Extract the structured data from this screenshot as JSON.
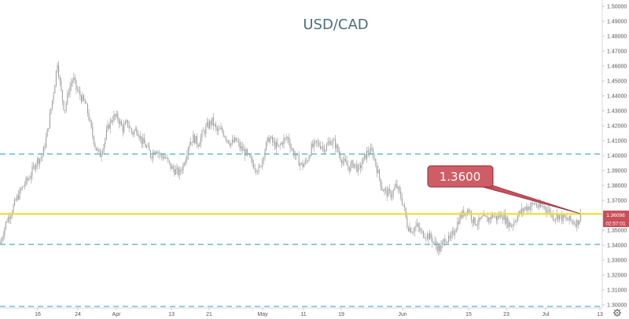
{
  "chart_data": {
    "type": "candlestick",
    "title": "USD/CAD",
    "xlabel": "",
    "ylabel": "",
    "ylim": [
      1.2925,
      1.5025
    ],
    "grid": false,
    "x_tick_labels": [
      "16",
      "24",
      "Apr",
      "13",
      "21",
      "May",
      "11",
      "19",
      "Jun",
      "15",
      "23",
      "Jul",
      "13"
    ],
    "y_tick_labels": [
      "1.30000",
      "1.31000",
      "1.32000",
      "1.33000",
      "1.34000",
      "1.35000",
      "1.36000",
      "1.37000",
      "1.38000",
      "1.39000",
      "1.40000",
      "1.41000",
      "1.42000",
      "1.43000",
      "1.44000",
      "1.45000",
      "1.46000",
      "1.47000",
      "1.48000",
      "1.49000",
      "1.50000"
    ],
    "price_path": [
      [
        0,
        1.341
      ],
      [
        8,
        1.356
      ],
      [
        14,
        1.362
      ],
      [
        22,
        1.372
      ],
      [
        30,
        1.38
      ],
      [
        38,
        1.386
      ],
      [
        46,
        1.396
      ],
      [
        54,
        1.4
      ],
      [
        60,
        1.415
      ],
      [
        66,
        1.435
      ],
      [
        70,
        1.45
      ],
      [
        73,
        1.463
      ],
      [
        77,
        1.445
      ],
      [
        82,
        1.43
      ],
      [
        88,
        1.445
      ],
      [
        93,
        1.452
      ],
      [
        97,
        1.445
      ],
      [
        102,
        1.44
      ],
      [
        108,
        1.435
      ],
      [
        112,
        1.428
      ],
      [
        117,
        1.415
      ],
      [
        122,
        1.405
      ],
      [
        127,
        1.4
      ],
      [
        132,
        1.408
      ],
      [
        138,
        1.42
      ],
      [
        144,
        1.426
      ],
      [
        150,
        1.425
      ],
      [
        156,
        1.418
      ],
      [
        162,
        1.422
      ],
      [
        168,
        1.415
      ],
      [
        174,
        1.418
      ],
      [
        180,
        1.41
      ],
      [
        186,
        1.406
      ],
      [
        192,
        1.4
      ],
      [
        198,
        1.405
      ],
      [
        204,
        1.4
      ],
      [
        210,
        1.399
      ],
      [
        216,
        1.393
      ],
      [
        222,
        1.39
      ],
      [
        228,
        1.388
      ],
      [
        234,
        1.395
      ],
      [
        240,
        1.408
      ],
      [
        246,
        1.412
      ],
      [
        252,
        1.408
      ],
      [
        258,
        1.415
      ],
      [
        264,
        1.42
      ],
      [
        270,
        1.423
      ],
      [
        276,
        1.416
      ],
      [
        282,
        1.417
      ],
      [
        288,
        1.412
      ],
      [
        294,
        1.408
      ],
      [
        300,
        1.41
      ],
      [
        306,
        1.405
      ],
      [
        312,
        1.402
      ],
      [
        318,
        1.397
      ],
      [
        324,
        1.393
      ],
      [
        330,
        1.39
      ],
      [
        336,
        1.403
      ],
      [
        342,
        1.412
      ],
      [
        348,
        1.408
      ],
      [
        354,
        1.405
      ],
      [
        360,
        1.41
      ],
      [
        366,
        1.412
      ],
      [
        372,
        1.403
      ],
      [
        378,
        1.398
      ],
      [
        384,
        1.393
      ],
      [
        390,
        1.396
      ],
      [
        396,
        1.405
      ],
      [
        402,
        1.408
      ],
      [
        408,
        1.407
      ],
      [
        414,
        1.405
      ],
      [
        420,
        1.41
      ],
      [
        426,
        1.408
      ],
      [
        432,
        1.4
      ],
      [
        438,
        1.395
      ],
      [
        444,
        1.392
      ],
      [
        450,
        1.395
      ],
      [
        456,
        1.39
      ],
      [
        462,
        1.397
      ],
      [
        468,
        1.403
      ],
      [
        474,
        1.402
      ],
      [
        480,
        1.39
      ],
      [
        486,
        1.378
      ],
      [
        492,
        1.375
      ],
      [
        498,
        1.374
      ],
      [
        504,
        1.38
      ],
      [
        510,
        1.372
      ],
      [
        514,
        1.365
      ],
      [
        518,
        1.353
      ],
      [
        524,
        1.35
      ],
      [
        530,
        1.353
      ],
      [
        536,
        1.348
      ],
      [
        542,
        1.347
      ],
      [
        548,
        1.345
      ],
      [
        554,
        1.34
      ],
      [
        560,
        1.337
      ],
      [
        566,
        1.345
      ],
      [
        572,
        1.343
      ],
      [
        578,
        1.35
      ],
      [
        584,
        1.358
      ],
      [
        590,
        1.362
      ],
      [
        596,
        1.364
      ],
      [
        602,
        1.356
      ],
      [
        608,
        1.355
      ],
      [
        614,
        1.358
      ],
      [
        620,
        1.357
      ],
      [
        626,
        1.36
      ],
      [
        632,
        1.358
      ],
      [
        638,
        1.361
      ],
      [
        644,
        1.356
      ],
      [
        650,
        1.353
      ],
      [
        656,
        1.358
      ],
      [
        662,
        1.362
      ],
      [
        668,
        1.365
      ],
      [
        674,
        1.366
      ],
      [
        680,
        1.368
      ],
      [
        686,
        1.365
      ],
      [
        692,
        1.366
      ],
      [
        698,
        1.363
      ],
      [
        704,
        1.359
      ],
      [
        710,
        1.36
      ],
      [
        716,
        1.358
      ],
      [
        722,
        1.357
      ],
      [
        728,
        1.356
      ],
      [
        734,
        1.355
      ],
      [
        740,
        1.3609
      ]
    ],
    "horizontal_lines": [
      {
        "name": "upper-dashed",
        "value": 1.401,
        "color": "#5bb5c9",
        "style": "dashed"
      },
      {
        "name": "lower-dashed",
        "value": 1.3405,
        "color": "#5bb5c9",
        "style": "dashed"
      },
      {
        "name": "support-level",
        "value": 1.3609,
        "color": "#f2dc33",
        "style": "solid"
      }
    ],
    "annotations": [
      {
        "text": "1.3600",
        "color": "#c9505a"
      }
    ],
    "last_price": "1.36098",
    "countdown": "02:57:01"
  },
  "colors": {
    "candles": "#9a9a9a",
    "accent_red": "#c9505a",
    "axis_text": "#555555",
    "title": "#4a6d85"
  },
  "icons": {
    "settings": "gear-icon"
  }
}
